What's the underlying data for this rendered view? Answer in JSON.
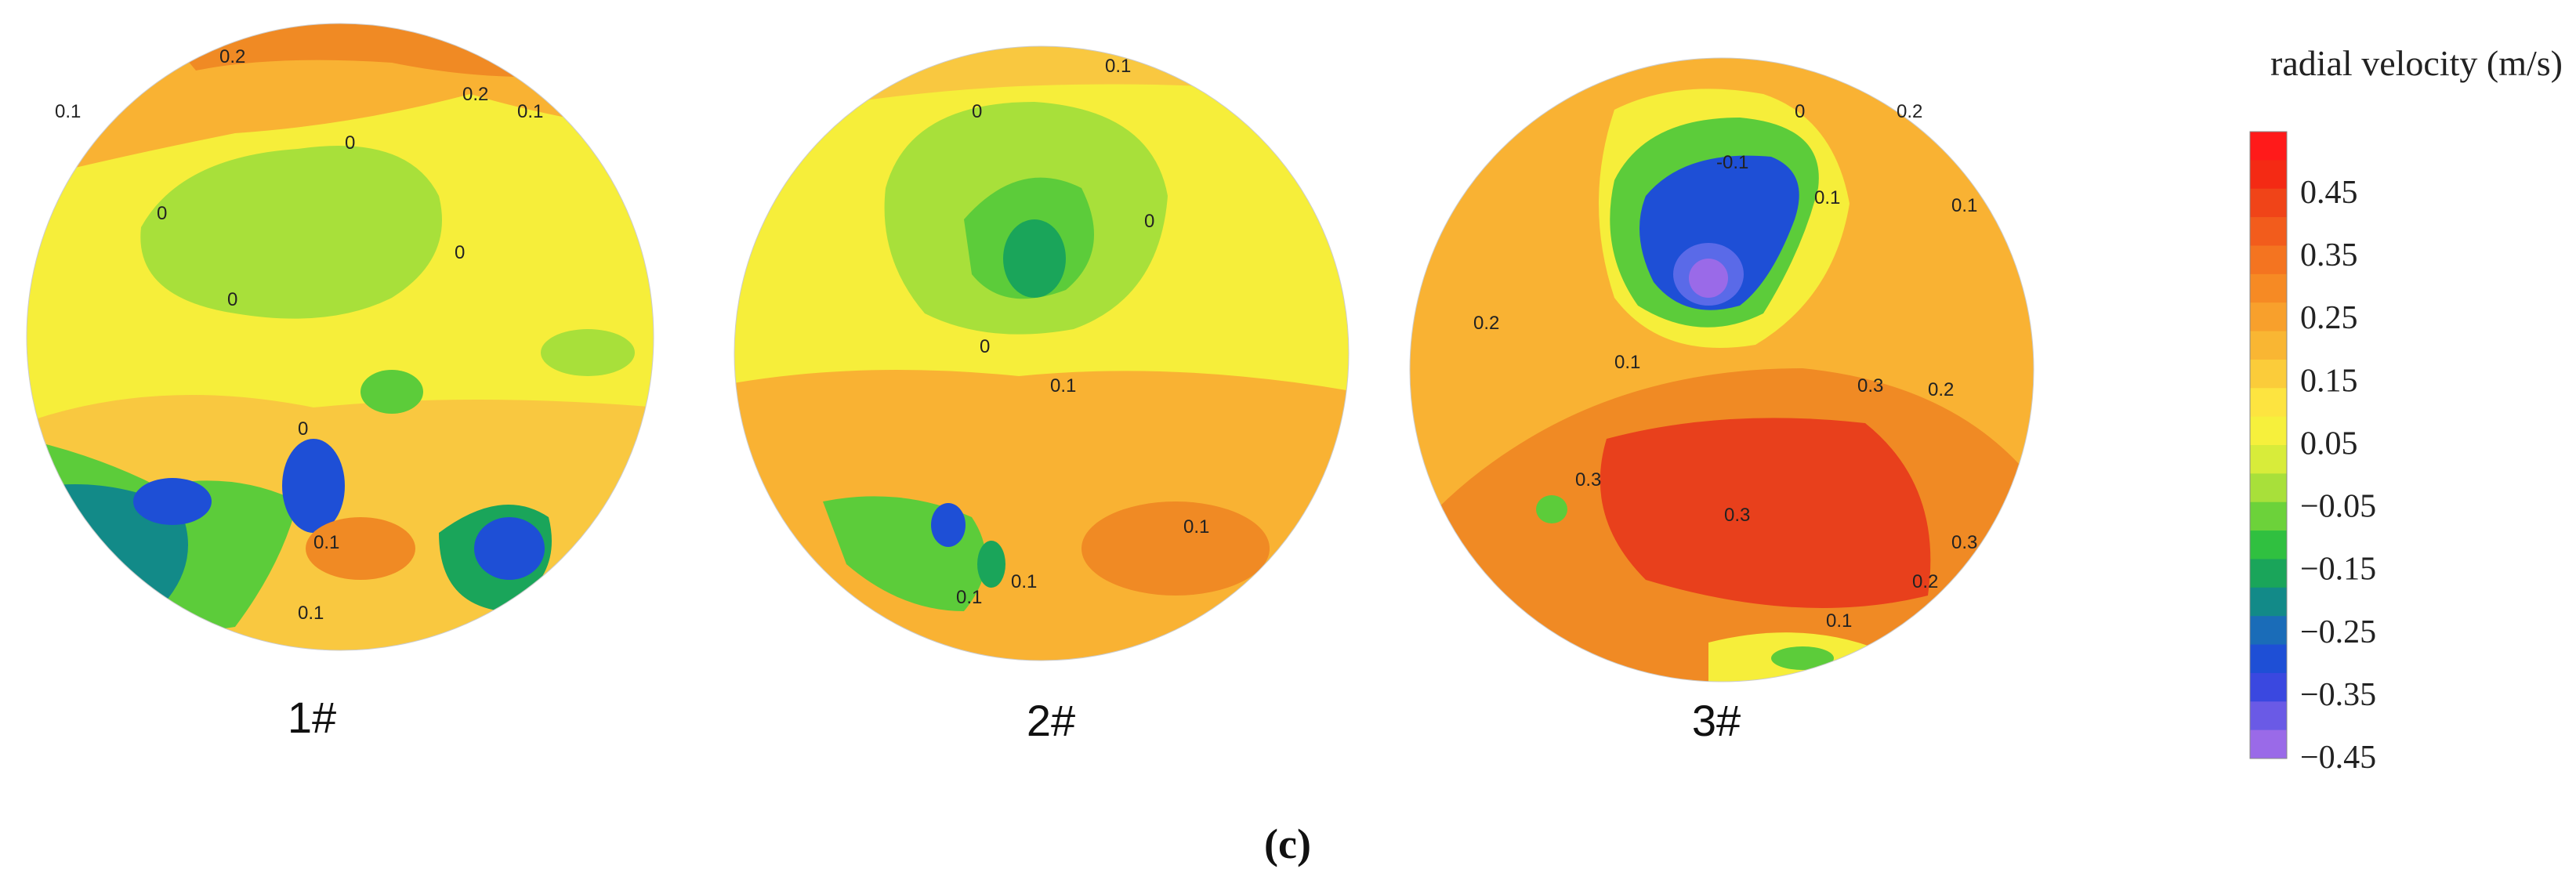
{
  "panels": [
    {
      "label": "1#",
      "contour_labels": [
        "0.2",
        "0.2",
        "0.1",
        "0.1",
        "0",
        "0",
        "0",
        "0",
        "0",
        "0.1",
        "0.1"
      ]
    },
    {
      "label": "2#",
      "contour_labels": [
        "0.1",
        "0",
        "0",
        "0",
        "0.1",
        "0.1",
        "0.1",
        "0.1"
      ]
    },
    {
      "label": "3#",
      "contour_labels": [
        "0",
        "-0.1",
        "0.1",
        "0.1",
        "0.2",
        "0.1",
        "0.2",
        "0.3",
        "0.2",
        "0.3",
        "0.3",
        "0.3",
        "0.2",
        "0.1"
      ]
    }
  ],
  "colorbar": {
    "title": "radial velocity (m/s)",
    "ticks": [
      "0.45",
      "0.35",
      "0.25",
      "0.15",
      "0.05",
      "−0.05",
      "−0.15",
      "−0.25",
      "−0.35",
      "−0.45"
    ]
  },
  "caption": "(c)"
}
